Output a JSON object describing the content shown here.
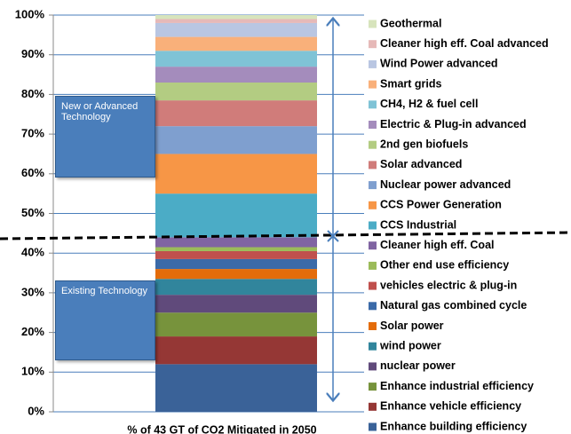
{
  "chart_data": {
    "type": "stacked_bar",
    "x_label": "% of 43 GT of CO2 Mitigated in 2050",
    "annotations": [
      "New or Advanced Technology",
      "Existing Technology"
    ],
    "ylim": [
      0,
      100
    ],
    "yticks": [
      {
        "value": 0,
        "label": "0%"
      },
      {
        "value": 10,
        "label": "10%"
      },
      {
        "value": 20,
        "label": "20%"
      },
      {
        "value": 30,
        "label": "30%"
      },
      {
        "value": 40,
        "label": "40%"
      },
      {
        "value": 50,
        "label": "50%"
      },
      {
        "value": 60,
        "label": "60%"
      },
      {
        "value": 70,
        "label": "70%"
      },
      {
        "value": 80,
        "label": "80%"
      },
      {
        "value": 90,
        "label": "90%"
      },
      {
        "value": 100,
        "label": "100%"
      }
    ],
    "grid": true,
    "legend": "right",
    "series": [
      {
        "name": "Enhance  building efficiency",
        "color": "#3a6298",
        "values": [
          12
        ]
      },
      {
        "name": "Enhance vehicle efficiency",
        "color": "#953735",
        "values": [
          7
        ]
      },
      {
        "name": "Enhance industrial efficiency",
        "color": "#77933c",
        "values": [
          6
        ]
      },
      {
        "name": "nuclear power",
        "color": "#604a7b",
        "values": [
          4.5
        ]
      },
      {
        "name": "wind power",
        "color": "#31859c",
        "values": [
          4
        ]
      },
      {
        "name": "Solar power",
        "color": "#e46c0a",
        "values": [
          2.5
        ]
      },
      {
        "name": "Natural gas combined cycle",
        "color": "#3b6aa8",
        "values": [
          2.5
        ]
      },
      {
        "name": "vehicles electric & plug-in",
        "color": "#c0504d",
        "values": [
          2
        ]
      },
      {
        "name": "Other end use efficiency",
        "color": "#9bbb59",
        "values": [
          1
        ]
      },
      {
        "name": "Cleaner high eff. Coal",
        "color": "#8064a2",
        "values": [
          2.5
        ]
      },
      {
        "name": "CCS Industrial",
        "color": "#4bacc6",
        "values": [
          11
        ]
      },
      {
        "name": "CCS Power Generation",
        "color": "#f79646",
        "values": [
          10
        ]
      },
      {
        "name": "Nuclear power advanced",
        "color": "#7f9fcf",
        "values": [
          7
        ]
      },
      {
        "name": "Solar advanced",
        "color": "#d07c7a",
        "values": [
          6.5
        ]
      },
      {
        "name": "2nd gen biofuels",
        "color": "#b3cc82",
        "values": [
          4.5
        ]
      },
      {
        "name": "Electric & Plug-in advanced",
        "color": "#a48cbc",
        "values": [
          4
        ]
      },
      {
        "name": "CH4, H2 & fuel cell",
        "color": "#7fc3d6",
        "values": [
          4
        ]
      },
      {
        "name": "Smart grids",
        "color": "#f9b07a",
        "values": [
          3.5
        ]
      },
      {
        "name": "Wind Power advanced",
        "color": "#b9c6e2",
        "values": [
          3.5
        ]
      },
      {
        "name": "Cleaner high eff. Coal advanced",
        "color": "#e6b9b8",
        "values": [
          1
        ]
      },
      {
        "name": "Geothermal",
        "color": "#d7e4bc",
        "values": [
          1
        ]
      }
    ]
  }
}
